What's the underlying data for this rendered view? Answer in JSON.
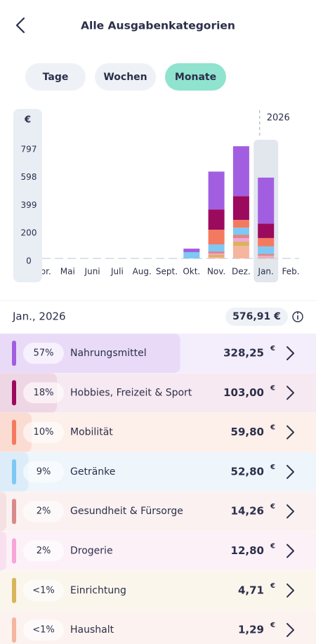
{
  "header": {
    "title": "Alle Ausgabenkategorien"
  },
  "tabs": {
    "items": [
      "Tage",
      "Wochen",
      "Monate"
    ],
    "active": "Monate"
  },
  "chart_data": {
    "type": "bar",
    "stacked": true,
    "y_label": "€",
    "year_label": "2026",
    "selected": "Jan.",
    "categories": [
      "Apr.",
      "Mai",
      "Juni",
      "Juli",
      "Aug.",
      "Sept.",
      "Okt.",
      "Nov.",
      "Dez.",
      "Jan.",
      "Feb."
    ],
    "ylim": [
      0,
      1000
    ],
    "yticks": [
      0,
      200,
      399,
      598,
      797
    ],
    "series": [
      {
        "name": "Haushalt",
        "color": "#f5b59e",
        "values": [
          null,
          null,
          null,
          null,
          null,
          null,
          0,
          10,
          90,
          1.29,
          null
        ]
      },
      {
        "name": "Einrichtung",
        "color": "#d9b45a",
        "values": [
          null,
          null,
          null,
          null,
          null,
          null,
          0,
          15,
          30,
          4.71,
          null
        ]
      },
      {
        "name": "Drogerie",
        "color": "#f6a6d8",
        "values": [
          null,
          null,
          null,
          null,
          null,
          null,
          0,
          10,
          25,
          12.8,
          null
        ]
      },
      {
        "name": "Gesundheit & Fürsorge",
        "color": "#d98a8a",
        "values": [
          null,
          null,
          null,
          null,
          null,
          null,
          0,
          15,
          25,
          14.26,
          null
        ]
      },
      {
        "name": "Getränke",
        "color": "#7ec8f5",
        "values": [
          null,
          null,
          null,
          null,
          null,
          null,
          45,
          50,
          50,
          52.8,
          null
        ]
      },
      {
        "name": "Mobilität",
        "color": "#f47a5f",
        "values": [
          null,
          null,
          null,
          null,
          null,
          null,
          0,
          105,
          55,
          59.8,
          null
        ]
      },
      {
        "name": "Hobbies, Freizeit & Sport",
        "color": "#9c0a5e",
        "values": [
          null,
          null,
          null,
          null,
          null,
          null,
          0,
          145,
          170,
          103,
          null
        ]
      },
      {
        "name": "Nahrungsmittel",
        "color": "#a25ee0",
        "values": [
          null,
          null,
          null,
          null,
          null,
          null,
          25,
          270,
          356,
          328.25,
          null
        ]
      }
    ]
  },
  "summary": {
    "period": "Jan., 2026",
    "total": "576,91 €"
  },
  "list": {
    "currency": "€",
    "rows": [
      {
        "series": 7,
        "share": "57%",
        "amount": "328,25",
        "bg": "#f4edfb",
        "bar": "#e9dbf8"
      },
      {
        "series": 6,
        "share": "18%",
        "amount": "103,00",
        "bg": "#f7e9f1",
        "bar": "#efd6e4"
      },
      {
        "series": 5,
        "share": "10%",
        "amount": "59,80",
        "bg": "#fdefea",
        "bar": "#fbdcd3"
      },
      {
        "series": 4,
        "share": "9%",
        "amount": "52,80",
        "bg": "#eef6fc",
        "bar": "#dcedf9"
      },
      {
        "series": 3,
        "share": "2%",
        "amount": "14,26",
        "bg": "#fbf1f1",
        "bar": "#f5e1e1"
      },
      {
        "series": 2,
        "share": "2%",
        "amount": "12,80",
        "bg": "#fdf1f8",
        "bar": "#f9e0ef"
      },
      {
        "series": 1,
        "share": "<1%",
        "amount": "4,71",
        "bg": "#fbf6ec",
        "bar": "#f5ead2"
      },
      {
        "series": 0,
        "share": "<1%",
        "amount": "1,29",
        "bg": "#fcf2ef",
        "bar": "#f7e1da"
      }
    ]
  }
}
